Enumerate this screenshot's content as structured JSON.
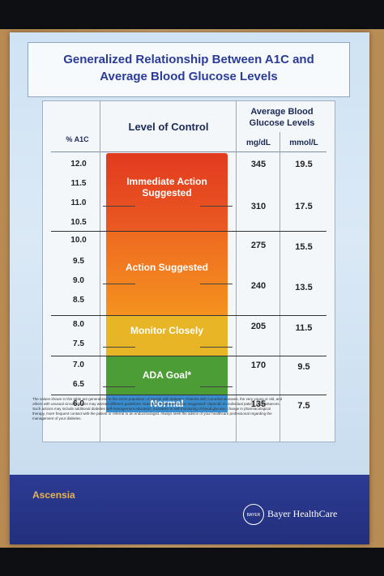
{
  "poster": {
    "title_line1": "Generalized Relationship Between A1C and",
    "title_line2": "Average Blood Glucose Levels",
    "col_a1c": "% A1C",
    "col_level": "Level of Control",
    "col_avg": "Average Blood Glucose Levels",
    "col_mgdl": "mg/dL",
    "col_mmol": "mmol/L",
    "a1c_values": [
      "12.0",
      "11.5",
      "11.0",
      "10.5",
      "10.0",
      "9.5",
      "9.0",
      "8.5",
      "8.0",
      "7.5",
      "7.0",
      "6.5",
      "6.0"
    ],
    "mgdl_values": [
      "345",
      "310",
      "275",
      "240",
      "205",
      "170",
      "135"
    ],
    "mmol_values": [
      "19.5",
      "17.5",
      "15.5",
      "13.5",
      "11.5",
      "9.5",
      "7.5"
    ],
    "bands": [
      {
        "label": "Immediate Action Suggested",
        "color": "#e8461f"
      },
      {
        "label": "Action Suggested",
        "color": "#f07a1e"
      },
      {
        "label": "Monitor Closely",
        "color": "#e5b324"
      },
      {
        "label": "ADA Goal*",
        "color": "#4a9b34"
      },
      {
        "label": "Normal",
        "color": "#3b8fcf"
      }
    ],
    "footnote": "The values shown in this table are generalized to the entire population of people with diabetes. Patients with comorbid diseases, the very young or old, and others with unusual circumstances may warrant different guidelines. Note that \"Additional Action Suggested\" depends on individual patient circumstances. Such actions may include additional diabetes self-management education, increases in self-monitoring of blood glucose, change in pharmacological therapy, more frequent contact with the patient or referral to an endocrinologist. Always seek the advice of your healthcare professional regarding the management of your diabetes.",
    "brand_left": "Ascensia",
    "brand_right": "Bayer HealthCare",
    "bayer_mark": "BAYER"
  }
}
